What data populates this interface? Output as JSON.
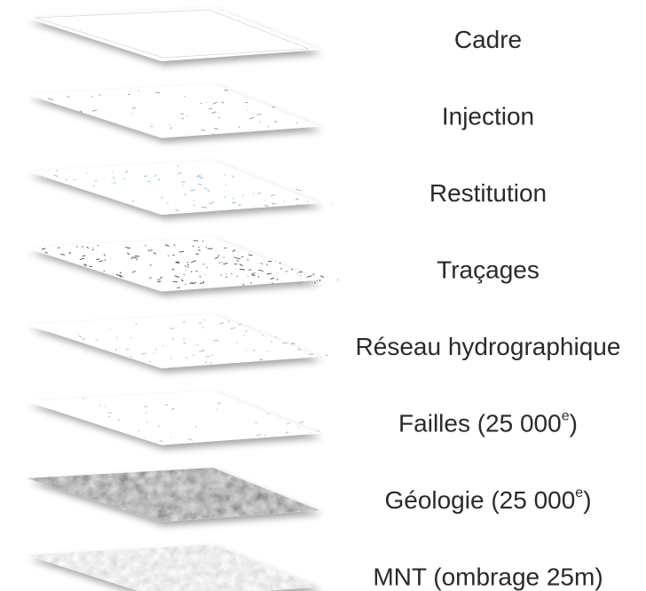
{
  "layers": [
    {
      "label": {
        "text": "Cadre"
      }
    },
    {
      "label": {
        "text": "Injection"
      }
    },
    {
      "label": {
        "text": "Restitution"
      }
    },
    {
      "label": {
        "text": "Traçages"
      }
    },
    {
      "label": {
        "text": "Réseau hydrographique"
      }
    },
    {
      "label": {
        "text": "Failles (25 000",
        "sup": "e",
        "after": ")"
      }
    },
    {
      "label": {
        "text": "Géologie (25 000",
        "sup": "e",
        "after": ")"
      }
    },
    {
      "label": {
        "text": "MNT (ombrage 25m)"
      }
    }
  ]
}
